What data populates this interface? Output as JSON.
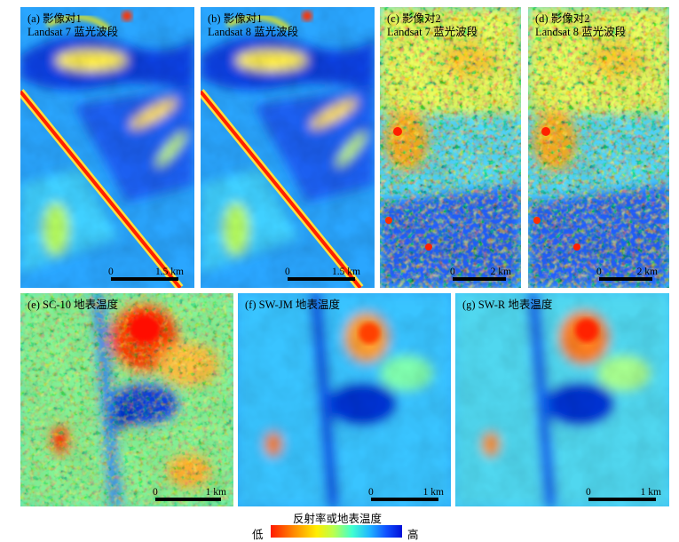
{
  "panels": [
    {
      "id": "a",
      "label_line1": "(a) 影像对1",
      "label_line2": "Landsat 7 蓝光波段",
      "scale_start": "0",
      "scale_end": "1.5 km"
    },
    {
      "id": "b",
      "label_line1": "(b) 影像对1",
      "label_line2": "Landsat 8 蓝光波段",
      "scale_start": "0",
      "scale_end": "1.5 km"
    },
    {
      "id": "c",
      "label_line1": "(c) 影像对2",
      "label_line2": "Landsat 7 蓝光波段",
      "scale_start": "0",
      "scale_end": "2 km"
    },
    {
      "id": "d",
      "label_line1": "(d) 影像对2",
      "label_line2": "Landsat 8 蓝光波段",
      "scale_start": "0",
      "scale_end": "2 km"
    },
    {
      "id": "e",
      "label_line1": "(e) SC-10 地表温度",
      "scale_start": "0",
      "scale_end": "1 km"
    },
    {
      "id": "f",
      "label_line1": "(f) SW-JM 地表温度",
      "scale_start": "0",
      "scale_end": "1 km"
    },
    {
      "id": "g",
      "label_line1": "(g) SW-R 地表温度",
      "scale_start": "0",
      "scale_end": "1 km"
    }
  ],
  "legend": {
    "title": "反射率或地表温度",
    "low": "低",
    "high": "高"
  },
  "colormap": [
    "#ff1a00",
    "#ff8c00",
    "#ffee00",
    "#b8ff50",
    "#40ffd0",
    "#20b8ff",
    "#1050ff",
    "#0010d8"
  ]
}
